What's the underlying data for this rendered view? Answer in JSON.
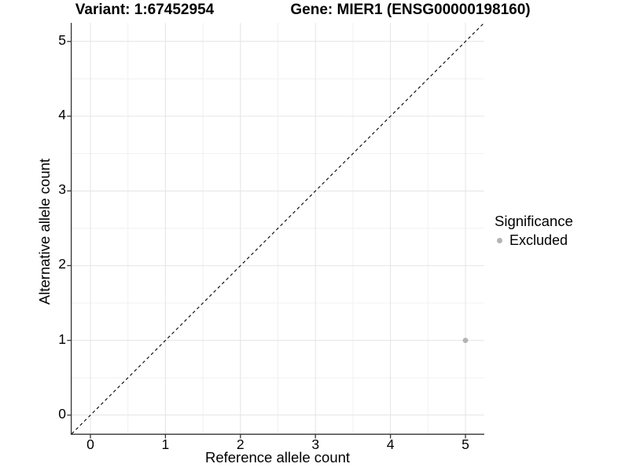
{
  "header": {
    "variant_title": "Variant: 1:67452954",
    "gene_title": "Gene: MIER1 (ENSG00000198160)"
  },
  "chart_data": {
    "type": "scatter",
    "title": "Variant: 1:67452954 | Gene: MIER1 (ENSG00000198160)",
    "xlabel": "Reference allele count",
    "ylabel": "Alternative allele count",
    "xlim": [
      -0.25,
      5.25
    ],
    "ylim": [
      -0.25,
      5.25
    ],
    "x_ticks": [
      0,
      1,
      2,
      3,
      4,
      5
    ],
    "y_ticks": [
      0,
      1,
      2,
      3,
      4,
      5
    ],
    "x_tick_labels": [
      "0",
      "1",
      "2",
      "3",
      "4",
      "5"
    ],
    "y_tick_labels": [
      "0",
      "1",
      "2",
      "3",
      "4",
      "5"
    ],
    "grid": "major and minor gridlines on white background",
    "legend_position": "right",
    "series": [
      {
        "name": "Excluded",
        "color": "#b4b4b4",
        "points": [
          {
            "x": 5,
            "y": 1
          }
        ]
      }
    ],
    "reference_line": {
      "type": "identity (y = x)",
      "style": "dashed",
      "color": "#000000",
      "from": -0.25,
      "to": 5.25
    }
  },
  "legend": {
    "title": "Significance",
    "items": [
      {
        "label": "Excluded",
        "color": "#b4b4b4",
        "marker": "circle-icon"
      }
    ]
  },
  "colors": {
    "background": "#ffffff",
    "grid_major": "#e4e4e4",
    "grid_minor": "#f1f1f1",
    "axis_line": "#333333",
    "text": "#000000",
    "excluded_point": "#b4b4b4"
  }
}
